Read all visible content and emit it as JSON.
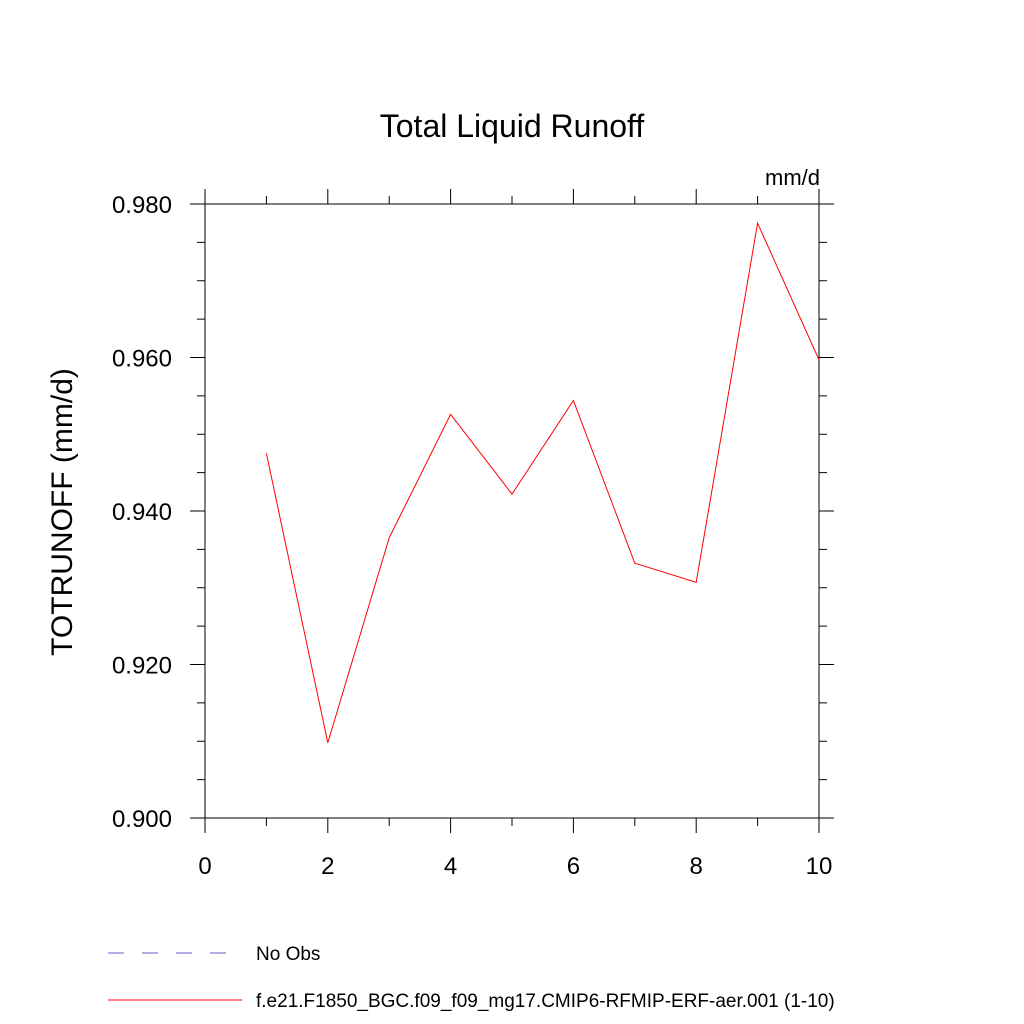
{
  "chart_data": {
    "type": "line",
    "title": "Total Liquid Runoff",
    "units_label": "mm/d",
    "xlabel": "",
    "ylabel": "TOTRUNOFF  (mm/d)",
    "xlim": [
      0,
      10
    ],
    "ylim": [
      0.9,
      0.98
    ],
    "x_ticks": [
      "0",
      "2",
      "4",
      "6",
      "8",
      "10"
    ],
    "y_ticks": [
      "0.900",
      "0.920",
      "0.940",
      "0.960",
      "0.980"
    ],
    "grid": false,
    "legend_position": "bottom-left",
    "x": [
      1,
      2,
      3,
      4,
      5,
      6,
      7,
      8,
      9,
      10
    ],
    "series": [
      {
        "name": "f.e21.F1850_BGC.f09_f09_mg17.CMIP6-RFMIP-ERF-aer.001 (1-10)",
        "color": "#ff0000",
        "values": [
          0.9475,
          0.9098,
          0.9365,
          0.9526,
          0.9422,
          0.9544,
          0.9332,
          0.9307,
          0.9775,
          0.9597
        ]
      }
    ],
    "legend": [
      {
        "label": "No Obs",
        "color": "#6a5acd",
        "style": "dashed"
      },
      {
        "label": "f.e21.F1850_BGC.f09_f09_mg17.CMIP6-RFMIP-ERF-aer.001 (1-10)",
        "color": "#ff0000",
        "style": "solid"
      }
    ]
  }
}
